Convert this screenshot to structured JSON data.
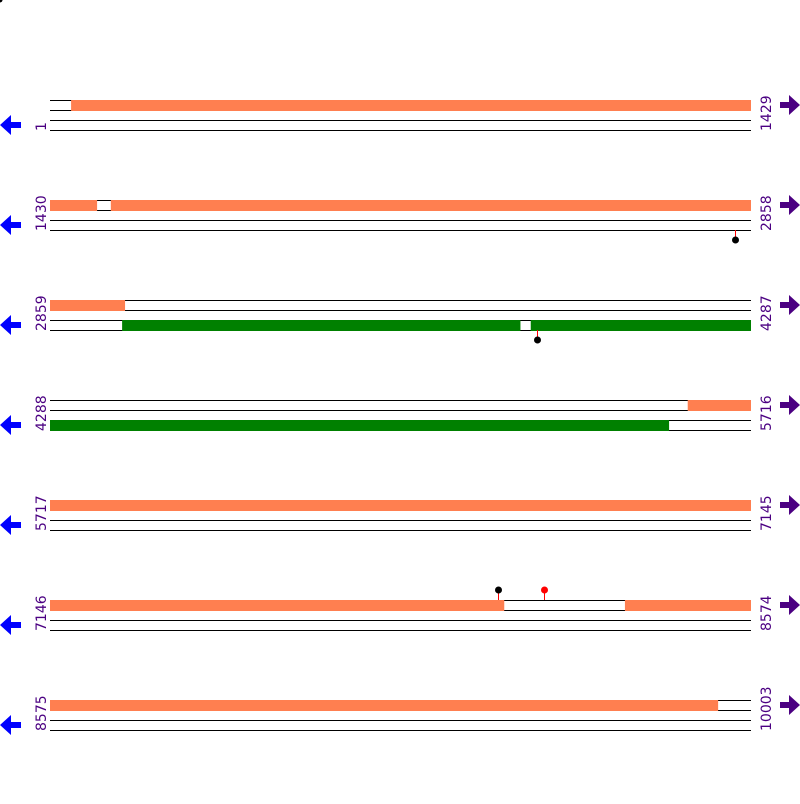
{
  "colors": {
    "forward_feature": "#FF7F50",
    "reverse_feature": "#008000",
    "label": "#4B0082",
    "reverse_arrow": "#0000FF",
    "forward_arrow": "#4B0082",
    "marker_black": "#000000",
    "marker_red": "#FF0000"
  },
  "icons": {
    "left": "arrow-left-icon",
    "right": "arrow-right-icon"
  },
  "rows": [
    {
      "start": 1,
      "end": 1429,
      "label_start": "1",
      "label_end": "1429",
      "forward": [
        [
          44,
          1429
        ]
      ],
      "reverse": [],
      "markers": []
    },
    {
      "start": 1430,
      "end": 2858,
      "label_start": "1430",
      "label_end": "2858",
      "forward": [
        [
          1430,
          1525
        ],
        [
          1554,
          2858
        ]
      ],
      "reverse": [],
      "markers": [
        {
          "pos": 2827,
          "track": "bottom",
          "color": "black"
        }
      ]
    },
    {
      "start": 2859,
      "end": 4287,
      "label_start": "2859",
      "label_end": "4287",
      "forward": [
        [
          2859,
          3011
        ]
      ],
      "reverse": [
        [
          3006,
          3817
        ],
        [
          3839,
          4287
        ]
      ],
      "markers": [
        {
          "pos": 3851,
          "track": "bottom",
          "color": "black"
        }
      ]
    },
    {
      "start": 4288,
      "end": 5716,
      "label_start": "4288",
      "label_end": "5716",
      "forward": [
        [
          5588,
          5716
        ]
      ],
      "reverse": [
        [
          4288,
          5549
        ]
      ],
      "markers": []
    },
    {
      "start": 5717,
      "end": 7145,
      "label_start": "5717",
      "label_end": "7145",
      "forward": [
        [
          5717,
          7145
        ]
      ],
      "reverse": [],
      "markers": []
    },
    {
      "start": 7146,
      "end": 8574,
      "label_start": "7146",
      "label_end": "8574",
      "forward": [
        [
          7146,
          8071
        ],
        [
          8318,
          8574
        ]
      ],
      "reverse": [],
      "markers": [
        {
          "pos": 8059,
          "track": "top",
          "color": "black"
        },
        {
          "pos": 8154,
          "track": "top",
          "color": "red"
        }
      ]
    },
    {
      "start": 8575,
      "end": 10003,
      "label_start": "8575",
      "label_end": "10003",
      "forward": [
        [
          8575,
          9936
        ]
      ],
      "reverse": [],
      "markers": []
    }
  ]
}
